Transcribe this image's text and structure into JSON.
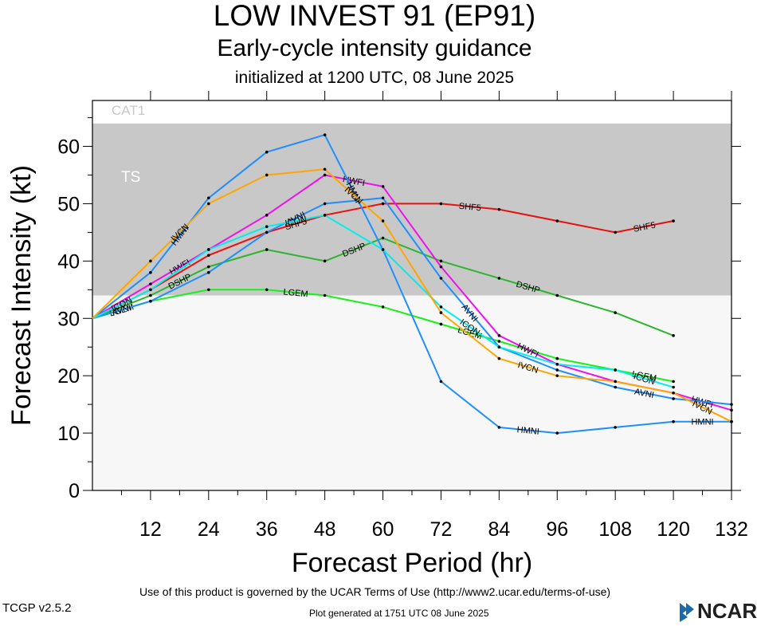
{
  "header": {
    "title": "LOW INVEST 91 (EP91)",
    "subtitle": "Early-cycle intensity guidance",
    "init_line": "initialized at 1200 UTC, 08 June 2025"
  },
  "footer": {
    "terms": "Use of this product is governed by the UCAR Terms of Use (http://www2.ucar.edu/terms-of-use)",
    "version": "TCGP v2.5.2",
    "generated": "Plot generated at 1751 UTC   08 June 2025",
    "logo_text": "NCAR"
  },
  "chart_data": {
    "type": "line",
    "xlabel": "Forecast Period (hr)",
    "ylabel": "Forecast Intensity (kt)",
    "xlim": [
      0,
      132
    ],
    "ylim": [
      0,
      68
    ],
    "xticks": [
      12,
      24,
      36,
      48,
      60,
      72,
      84,
      96,
      108,
      120,
      132
    ],
    "yticks": [
      0,
      10,
      20,
      30,
      40,
      50,
      60
    ],
    "grid": false,
    "bands": [
      {
        "label": "TS",
        "from": 34,
        "to": 64,
        "color": "#c8c8c8"
      },
      {
        "label": "CAT1",
        "from": 64,
        "to": 68,
        "color": "#ffffff"
      }
    ],
    "plot_background": "#f7f7f7",
    "series": [
      {
        "name": "SHF5",
        "color": "#e8110f",
        "x": [
          0,
          12,
          24,
          36,
          48,
          60,
          72,
          84,
          96,
          108,
          120
        ],
        "y": [
          30,
          35,
          41,
          45,
          48,
          50,
          50,
          49,
          47,
          45,
          47
        ]
      },
      {
        "name": "DSHP",
        "color": "#2db52d",
        "x": [
          0,
          12,
          24,
          36,
          48,
          60,
          72,
          84,
          96,
          108,
          120
        ],
        "y": [
          30,
          34,
          39,
          42,
          40,
          44,
          40,
          37,
          34,
          31,
          27
        ]
      },
      {
        "name": "LGEM",
        "color": "#18f018",
        "x": [
          0,
          12,
          24,
          36,
          48,
          60,
          72,
          84,
          96,
          108,
          120
        ],
        "y": [
          30,
          33,
          35,
          35,
          34,
          32,
          29,
          26,
          23,
          21,
          19
        ]
      },
      {
        "name": "HWFI",
        "color": "#ee11ee",
        "x": [
          0,
          12,
          24,
          36,
          48,
          60,
          72,
          84,
          96,
          108,
          120,
          132
        ],
        "y": [
          30,
          36,
          42,
          48,
          55,
          53,
          39,
          27,
          22,
          19,
          17,
          14
        ]
      },
      {
        "name": "AVNI",
        "color": "#1e8fff",
        "x": [
          0,
          12,
          24,
          36,
          48,
          60,
          72,
          84,
          96,
          108,
          120,
          132
        ],
        "y": [
          30,
          33,
          38,
          45,
          50,
          51,
          37,
          25,
          21,
          18,
          16,
          15
        ]
      },
      {
        "name": "HMNI",
        "color": "#1e8fff",
        "x": [
          0,
          12,
          24,
          36,
          48,
          60,
          72,
          84,
          96,
          108,
          120,
          132
        ],
        "y": [
          30,
          38,
          51,
          59,
          62,
          42,
          19,
          11,
          10,
          11,
          12,
          12
        ]
      },
      {
        "name": "ICON",
        "color": "#00eeee",
        "x": [
          0,
          12,
          24,
          36,
          48,
          60,
          72,
          84,
          96,
          108,
          120
        ],
        "y": [
          30,
          35,
          42,
          46,
          48,
          42,
          32,
          25,
          22,
          21,
          18
        ]
      },
      {
        "name": "IVCN",
        "color": "#ffa500",
        "x": [
          0,
          12,
          24,
          36,
          48,
          60,
          72,
          84,
          96,
          108,
          120,
          132
        ],
        "y": [
          30,
          40,
          50,
          55,
          56,
          47,
          31,
          23,
          20,
          19,
          17,
          12
        ]
      }
    ]
  }
}
